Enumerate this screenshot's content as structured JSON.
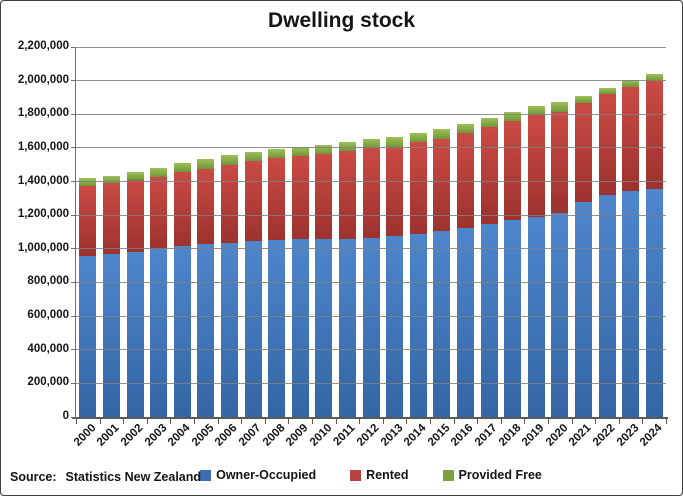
{
  "title": "Dwelling stock",
  "source": {
    "label": "Source:",
    "text": "Statistics New Zealand"
  },
  "chart_data": {
    "type": "bar",
    "stacked": true,
    "title": "Dwelling stock",
    "xlabel": "",
    "ylabel": "",
    "ylim": [
      0,
      2200000
    ],
    "ytick_step": 200000,
    "grid": true,
    "legend_position": "bottom",
    "y_tick_labels": [
      "0",
      "200,000",
      "400,000",
      "600,000",
      "800,000",
      "1,000,000",
      "1,200,000",
      "1,400,000",
      "1,600,000",
      "1,800,000",
      "2,000,000",
      "2,200,000"
    ],
    "categories": [
      "2000",
      "2001",
      "2002",
      "2003",
      "2004",
      "2005",
      "2006",
      "2007",
      "2008",
      "2009",
      "2010",
      "2011",
      "2012",
      "2013",
      "2014",
      "2015",
      "2016",
      "2017",
      "2018",
      "2019",
      "2020",
      "2021",
      "2022",
      "2023",
      "2024"
    ],
    "series": [
      {
        "name": "Owner-Occupied",
        "legend_color": "#3d6eb5",
        "fill_top": "#4e86cc",
        "fill_bottom": "#3465a4",
        "values": [
          958000,
          970000,
          983000,
          998000,
          1015000,
          1026000,
          1036000,
          1048000,
          1053000,
          1056000,
          1059000,
          1060000,
          1067000,
          1074000,
          1088000,
          1104000,
          1124000,
          1146000,
          1170000,
          1190000,
          1214000,
          1278000,
          1318000,
          1344000,
          1354000
        ]
      },
      {
        "name": "Rented",
        "legend_color": "#b6413e",
        "fill_top": "#cb4a44",
        "fill_bottom": "#9c322e",
        "values": [
          417000,
          422000,
          427000,
          432000,
          444000,
          450000,
          464000,
          472000,
          485000,
          497000,
          507000,
          519000,
          530000,
          532000,
          545000,
          551000,
          566000,
          578000,
          592000,
          605000,
          600000,
          591000,
          600000,
          618000,
          642000
        ]
      },
      {
        "name": "Provided Free",
        "legend_color": "#7ea03f",
        "fill_top": "#9cc155",
        "fill_bottom": "#71963b",
        "values": [
          44000,
          44000,
          45000,
          50000,
          51000,
          57000,
          56000,
          56000,
          58000,
          55000,
          51000,
          55000,
          55000,
          58000,
          54000,
          58000,
          52000,
          52000,
          53000,
          57000,
          60000,
          42000,
          40000,
          43000,
          42000
        ]
      }
    ]
  }
}
